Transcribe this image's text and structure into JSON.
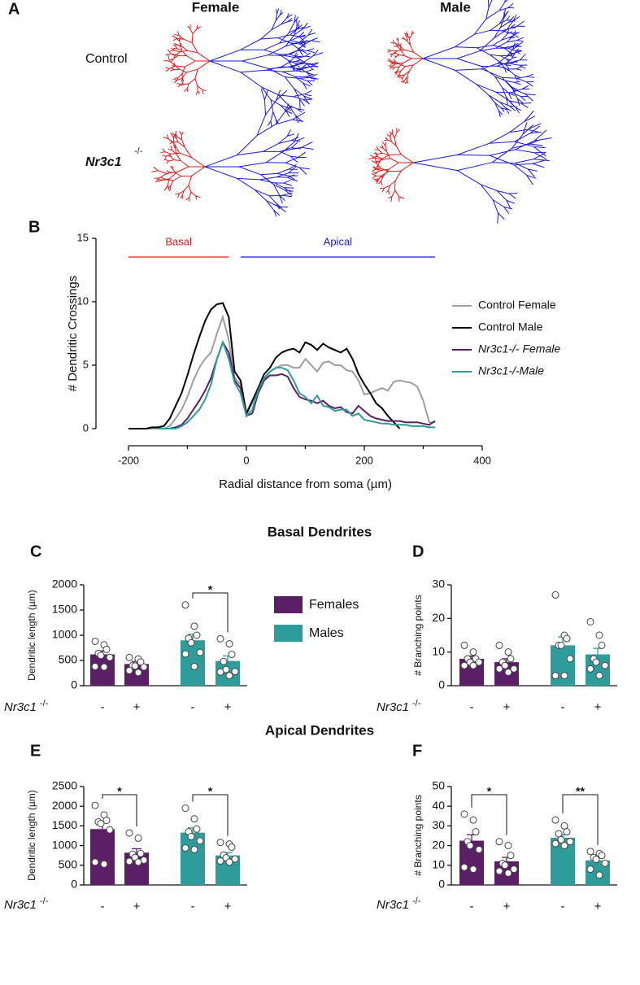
{
  "panel_labels": [
    "A",
    "B",
    "C",
    "D",
    "E",
    "F"
  ],
  "section_titles": [
    "Basal Dendrites",
    "Apical Dendrites"
  ],
  "neurons": {
    "columns": [
      "Female",
      "Male"
    ],
    "rows": [
      {
        "label": "Control"
      },
      {
        "label": "Nr3c1",
        "superscript": "-/-"
      }
    ]
  },
  "chart_data": [
    {
      "type": "line",
      "x_label": "Radial distance from soma (µm)",
      "y_label": "# Dendritic Crossings",
      "x": [
        -200,
        -190,
        -180,
        -170,
        -160,
        -150,
        -140,
        -130,
        -120,
        -110,
        -100,
        -90,
        -80,
        -70,
        -60,
        -50,
        -40,
        -30,
        -20,
        -10,
        0,
        10,
        20,
        30,
        40,
        50,
        60,
        70,
        80,
        90,
        100,
        110,
        120,
        130,
        140,
        150,
        160,
        170,
        180,
        190,
        200,
        210,
        220,
        230,
        240,
        250,
        260,
        270,
        280,
        290,
        300,
        310,
        320
      ],
      "series": [
        {
          "name": "Control Female",
          "color": "#9e9e9e",
          "values": [
            0,
            0,
            0,
            0,
            0,
            0,
            0,
            0.2,
            0.8,
            1.5,
            2.5,
            3.8,
            4.8,
            5.5,
            6.0,
            7.5,
            8.8,
            7.0,
            4.0,
            3.5,
            1.1,
            2.0,
            3.0,
            3.8,
            4.5,
            4.8,
            5.0,
            5.0,
            4.8,
            4.8,
            5.5,
            5.0,
            4.5,
            5.2,
            5.3,
            5.0,
            5.0,
            4.6,
            4.5,
            3.8,
            2.7,
            2.8,
            3.0,
            3.2,
            3.0,
            3.7,
            3.8,
            3.7,
            3.6,
            3.3,
            2.2,
            0.5,
            0.5
          ]
        },
        {
          "name": "Control Male",
          "color": "#000000",
          "values": [
            0,
            0,
            0,
            0,
            0.1,
            0.1,
            0.2,
            0.8,
            1.8,
            2.8,
            4.2,
            5.8,
            7.2,
            8.5,
            9.4,
            9.8,
            9.9,
            8.8,
            4.5,
            3.8,
            1.2,
            2.2,
            3.2,
            4.3,
            4.8,
            5.6,
            6.0,
            6.2,
            6.3,
            6.0,
            6.8,
            6.6,
            6.2,
            6.7,
            6.4,
            6.2,
            6.0,
            6.3,
            5.5,
            4.3,
            3.5,
            2.8,
            2.0,
            1.6,
            1.0,
            0.5,
            0.0,
            null,
            null,
            null,
            null,
            null,
            null
          ]
        },
        {
          "name": "Nr3c1-/- Female",
          "color": "#5b1f66",
          "values": [
            null,
            null,
            null,
            null,
            null,
            0,
            0,
            0,
            0.1,
            0.3,
            0.8,
            1.5,
            2.2,
            3.0,
            4.0,
            5.5,
            6.8,
            6.0,
            3.8,
            3.2,
            1.0,
            1.2,
            2.8,
            3.8,
            4.2,
            4.2,
            4.3,
            4.1,
            3.2,
            2.5,
            2.3,
            2.2,
            2.0,
            2.2,
            1.8,
            1.6,
            1.7,
            1.3,
            1.2,
            1.8,
            1.4,
            1.0,
            0.8,
            0.7,
            0.6,
            0.6,
            0.6,
            0.5,
            0.5,
            0.5,
            0.4,
            0.3,
            0.6
          ]
        },
        {
          "name": "Nr3c1-/-Male",
          "color": "#2e9c9a",
          "values": [
            null,
            null,
            null,
            null,
            null,
            0,
            0,
            0,
            0,
            0.2,
            0.5,
            1.0,
            1.5,
            2.3,
            3.5,
            5.5,
            6.8,
            5.5,
            3.6,
            2.8,
            1.0,
            1.5,
            3.0,
            4.0,
            4.5,
            4.8,
            4.8,
            4.6,
            3.8,
            2.8,
            2.5,
            2.0,
            2.6,
            1.8,
            1.7,
            1.4,
            1.5,
            1.5,
            1.0,
            1.2,
            0.7,
            0.6,
            0.5,
            0.4,
            0.4,
            0.3,
            0.3,
            0.3,
            0.2,
            0.2,
            0.2,
            0.1,
            0.1
          ]
        }
      ],
      "xlim": [
        -200,
        400
      ],
      "ylim": [
        0,
        15
      ],
      "xticks": [
        -200,
        0,
        200,
        400
      ],
      "xminorticks": [
        -100,
        100,
        300
      ],
      "yticks": [
        0,
        5,
        10,
        15
      ],
      "annotations": [
        {
          "text": "Basal",
          "x": [
            -200,
            -30
          ],
          "color": "#e41a1c"
        },
        {
          "text": "Apical",
          "x": [
            -10,
            320
          ],
          "color": "#1a1adb"
        }
      ],
      "legend": "right"
    },
    {
      "type": "bar",
      "y_label": "Dendritic length (µm)",
      "categories": [
        "-",
        "+",
        "-",
        "+"
      ],
      "x_label": {
        "text": "Nr3c1",
        "superscript": "-/-"
      },
      "series": [
        {
          "name": "Females",
          "color": "#5b1f66",
          "values": [
            620,
            430,
            null,
            null
          ],
          "errors": [
            70,
            50,
            null,
            null
          ],
          "points": [
            [
              880,
              810,
              720,
              640,
              600,
              560,
              380,
              370
            ],
            [
              560,
              530,
              470,
              400,
              390,
              370,
              300,
              260
            ],
            null,
            null
          ]
        },
        {
          "name": "Males",
          "color": "#2e9c9a",
          "values": [
            null,
            null,
            900,
            490
          ],
          "errors": [
            null,
            null,
            120,
            100
          ],
          "points": [
            null,
            null,
            [
              1600,
              1180,
              1000,
              940,
              850,
              660,
              630,
              380
            ],
            [
              930,
              830,
              620,
              480,
              320,
              280,
              270,
              200
            ]
          ]
        }
      ],
      "ylim": [
        0,
        2000
      ],
      "yticks": [
        0,
        500,
        1000,
        1500,
        2000
      ],
      "significance": [
        {
          "between": [
            2,
            3
          ],
          "label": "*"
        }
      ],
      "legend": "right"
    },
    {
      "type": "bar",
      "y_label": "# Branching points",
      "categories": [
        "-",
        "+",
        "-",
        "+"
      ],
      "x_label": {
        "text": "Nr3c1",
        "superscript": "-/-"
      },
      "series": [
        {
          "color": "#5b1f66",
          "values": [
            8,
            7,
            null,
            null
          ],
          "errors": [
            0.8,
            1,
            null,
            null
          ],
          "points": [
            [
              12,
              10,
              8,
              8,
              7,
              7,
              6,
              6
            ],
            [
              12,
              10,
              8,
              7,
              6,
              5,
              5,
              4
            ],
            null,
            null
          ]
        },
        {
          "color": "#2e9c9a",
          "values": [
            null,
            null,
            12,
            9.3
          ],
          "errors": [
            null,
            null,
            2.5,
            1.8
          ],
          "points": [
            null,
            null,
            [
              27,
              15,
              14,
              12,
              12,
              8,
              3,
              3
            ],
            [
              19,
              15,
              12,
              8,
              7,
              6,
              5,
              3
            ]
          ]
        }
      ],
      "ylim": [
        0,
        30
      ],
      "yticks": [
        0,
        10,
        20,
        30
      ],
      "significance": []
    },
    {
      "type": "bar",
      "y_label": "Dendritic length (µm)",
      "categories": [
        "-",
        "+",
        "-",
        "+"
      ],
      "x_label": {
        "text": "Nr3c1",
        "superscript": "-/-"
      },
      "series": [
        {
          "color": "#5b1f66",
          "values": [
            1420,
            820,
            null,
            null
          ],
          "errors": [
            170,
            100,
            null,
            null
          ],
          "points": [
            [
              2020,
              1780,
              1640,
              1600,
              1560,
              1400,
              580,
              530
            ],
            [
              1320,
              1190,
              800,
              780,
              700,
              630,
              600,
              580
            ],
            null,
            null
          ]
        },
        {
          "color": "#2e9c9a",
          "values": [
            null,
            null,
            1330,
            750
          ],
          "errors": [
            null,
            null,
            120,
            70
          ],
          "points": [
            null,
            null,
            [
              1950,
              1680,
              1420,
              1350,
              1230,
              1120,
              940,
              900
            ],
            [
              1080,
              1040,
              960,
              760,
              690,
              660,
              610,
              580
            ]
          ]
        }
      ],
      "ylim": [
        0,
        2500
      ],
      "yticks": [
        0,
        500,
        1000,
        1500,
        2000,
        2500
      ],
      "significance": [
        {
          "between": [
            0,
            1
          ],
          "label": "*"
        },
        {
          "between": [
            2,
            3
          ],
          "label": "*"
        }
      ]
    },
    {
      "type": "bar",
      "y_label": "# Branching points",
      "categories": [
        "-",
        "+",
        "-",
        "+"
      ],
      "x_label": {
        "text": "Nr3c1",
        "superscript": "-/-"
      },
      "series": [
        {
          "color": "#5b1f66",
          "values": [
            22.5,
            12,
            null,
            null
          ],
          "errors": [
            3,
            2,
            null,
            null
          ],
          "points": [
            [
              36,
              33,
              27,
              22,
              20,
              18,
              9,
              8
            ],
            [
              22,
              20,
              15,
              11,
              10,
              8,
              7,
              6
            ],
            null,
            null
          ]
        },
        {
          "color": "#2e9c9a",
          "values": [
            null,
            null,
            24,
            12.5
          ],
          "errors": [
            null,
            null,
            1.5,
            1.5
          ],
          "points": [
            null,
            null,
            [
              33,
              30,
              27,
              26,
              23,
              22,
              21,
              20
            ],
            [
              17,
              16,
              15,
              14,
              13,
              11,
              8,
              5
            ]
          ]
        }
      ],
      "ylim": [
        0,
        50
      ],
      "yticks": [
        0,
        10,
        20,
        30,
        40,
        50
      ],
      "significance": [
        {
          "between": [
            0,
            1
          ],
          "label": "*"
        },
        {
          "between": [
            2,
            3
          ],
          "label": "**"
        }
      ]
    }
  ]
}
